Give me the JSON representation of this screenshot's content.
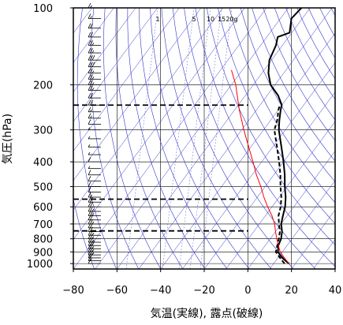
{
  "chart_data": {
    "type": "line",
    "title": "",
    "xlabel": "気温(実線), 露点(破線)",
    "ylabel": "気圧(hPa)",
    "x_range": [
      -80,
      40
    ],
    "p_range": [
      100,
      1050
    ],
    "y_scale": "log",
    "x_ticks": [
      -80,
      -60,
      -40,
      -20,
      0,
      20,
      40
    ],
    "x_tick_labels": [
      "−80",
      "−60",
      "−40",
      "−20",
      "0",
      "20",
      "40"
    ],
    "p_ticks": [
      100,
      200,
      300,
      400,
      500,
      600,
      700,
      800,
      900,
      1000
    ],
    "p_tick_labels": [
      "100",
      "200",
      "300",
      "400",
      "500",
      "600",
      "700",
      "800",
      "900",
      "1000"
    ],
    "mixing_ratio_labels": [
      "1",
      "5",
      "10",
      "15",
      "20g"
    ],
    "mixing_ratio_values": [
      1,
      5,
      10,
      15,
      20
    ],
    "grid": true,
    "series": [
      {
        "kind": "temperature",
        "style": "solid",
        "color": "#000000",
        "points": [
          {
            "p": 1000,
            "t": 17
          },
          {
            "p": 975,
            "t": 14.5
          },
          {
            "p": 950,
            "t": 12
          },
          {
            "p": 925,
            "t": 10
          },
          {
            "p": 900,
            "t": 8
          },
          {
            "p": 850,
            "t": 6
          },
          {
            "p": 800,
            "t": 5
          },
          {
            "p": 750,
            "t": 3
          },
          {
            "p": 700,
            "t": 0
          },
          {
            "p": 650,
            "t": -2
          },
          {
            "p": 600,
            "t": -4
          },
          {
            "p": 550,
            "t": -7
          },
          {
            "p": 500,
            "t": -11
          },
          {
            "p": 450,
            "t": -15
          },
          {
            "p": 400,
            "t": -20
          },
          {
            "p": 350,
            "t": -26
          },
          {
            "p": 300,
            "t": -33
          },
          {
            "p": 275,
            "t": -36
          },
          {
            "p": 250,
            "t": -39
          },
          {
            "p": 240,
            "t": -40
          },
          {
            "p": 220,
            "t": -45
          },
          {
            "p": 200,
            "t": -52
          },
          {
            "p": 180,
            "t": -57
          },
          {
            "p": 160,
            "t": -61
          },
          {
            "p": 140,
            "t": -63
          },
          {
            "p": 130,
            "t": -65
          },
          {
            "p": 125,
            "t": -61
          },
          {
            "p": 110,
            "t": -65
          },
          {
            "p": 100,
            "t": -64
          }
        ]
      },
      {
        "kind": "dewpoint",
        "style": "dashed",
        "color": "#000000",
        "points": [
          {
            "p": 1000,
            "t": 15
          },
          {
            "p": 975,
            "t": 13
          },
          {
            "p": 950,
            "t": 11
          },
          {
            "p": 925,
            "t": 9
          },
          {
            "p": 900,
            "t": 7
          },
          {
            "p": 850,
            "t": 5.5
          },
          {
            "p": 800,
            "t": 4
          },
          {
            "p": 750,
            "t": 2
          },
          {
            "p": 700,
            "t": -1
          },
          {
            "p": 650,
            "t": -4
          },
          {
            "p": 600,
            "t": -6
          },
          {
            "p": 550,
            "t": -9
          },
          {
            "p": 500,
            "t": -13
          },
          {
            "p": 450,
            "t": -17
          },
          {
            "p": 400,
            "t": -22
          },
          {
            "p": 350,
            "t": -28
          },
          {
            "p": 300,
            "t": -35
          },
          {
            "p": 275,
            "t": -37
          },
          {
            "p": 250,
            "t": -40
          },
          {
            "p": 240,
            "t": -41
          }
        ]
      },
      {
        "kind": "parcel",
        "style": "solid",
        "color": "#ff0000",
        "points": [
          {
            "p": 1000,
            "t": 17
          },
          {
            "p": 950,
            "t": 13
          },
          {
            "p": 900,
            "t": 9
          },
          {
            "p": 850,
            "t": 6
          },
          {
            "p": 800,
            "t": 3
          },
          {
            "p": 750,
            "t": 0
          },
          {
            "p": 700,
            "t": -3
          },
          {
            "p": 650,
            "t": -7
          },
          {
            "p": 600,
            "t": -12
          },
          {
            "p": 550,
            "t": -17
          },
          {
            "p": 500,
            "t": -22
          },
          {
            "p": 450,
            "t": -28
          },
          {
            "p": 400,
            "t": -34
          },
          {
            "p": 350,
            "t": -41
          },
          {
            "p": 300,
            "t": -49
          },
          {
            "p": 250,
            "t": -58
          },
          {
            "p": 200,
            "t": -68
          },
          {
            "p": 175,
            "t": -75
          }
        ]
      }
    ],
    "levels_marked": [
      {
        "p": 240
      },
      {
        "p": 560
      },
      {
        "p": 745
      }
    ],
    "wind_barbs": [
      {
        "p": 1000,
        "speed": 10
      },
      {
        "p": 975,
        "speed": 15
      },
      {
        "p": 950,
        "speed": 20
      },
      {
        "p": 925,
        "speed": 25
      },
      {
        "p": 900,
        "speed": 25
      },
      {
        "p": 875,
        "speed": 25
      },
      {
        "p": 850,
        "speed": 30
      },
      {
        "p": 825,
        "speed": 25
      },
      {
        "p": 800,
        "speed": 25
      },
      {
        "p": 775,
        "speed": 25
      },
      {
        "p": 750,
        "speed": 20
      },
      {
        "p": 725,
        "speed": 20
      },
      {
        "p": 700,
        "speed": 25
      },
      {
        "p": 675,
        "speed": 20
      },
      {
        "p": 650,
        "speed": 25
      },
      {
        "p": 625,
        "speed": 25
      },
      {
        "p": 600,
        "speed": 20
      },
      {
        "p": 575,
        "speed": 20
      },
      {
        "p": 550,
        "speed": 15
      },
      {
        "p": 525,
        "speed": 10
      },
      {
        "p": 500,
        "speed": 10
      },
      {
        "p": 475,
        "speed": 10
      },
      {
        "p": 450,
        "speed": 10
      },
      {
        "p": 425,
        "speed": 5
      },
      {
        "p": 400,
        "speed": 10
      },
      {
        "p": 375,
        "speed": 5
      },
      {
        "p": 350,
        "speed": 5
      },
      {
        "p": 325,
        "speed": 5
      },
      {
        "p": 300,
        "speed": 5
      },
      {
        "p": 285,
        "speed": 10
      },
      {
        "p": 270,
        "speed": 15
      },
      {
        "p": 255,
        "speed": 15
      },
      {
        "p": 240,
        "speed": 20
      },
      {
        "p": 225,
        "speed": 20
      },
      {
        "p": 210,
        "speed": 25
      },
      {
        "p": 200,
        "speed": 25
      },
      {
        "p": 190,
        "speed": 25
      },
      {
        "p": 180,
        "speed": 25
      },
      {
        "p": 170,
        "speed": 30
      },
      {
        "p": 160,
        "speed": 30
      },
      {
        "p": 150,
        "speed": 25
      },
      {
        "p": 140,
        "speed": 25
      },
      {
        "p": 130,
        "speed": 20
      },
      {
        "p": 120,
        "speed": 20
      },
      {
        "p": 110,
        "speed": 15
      },
      {
        "p": 100,
        "speed": 15
      }
    ],
    "colors": {
      "isotherm_grid": "#000000",
      "adiabat": "#3333cc",
      "temperature": "#000000",
      "dewpoint": "#000000",
      "parcel": "#ff0000",
      "wind_barb": "#000000"
    }
  }
}
